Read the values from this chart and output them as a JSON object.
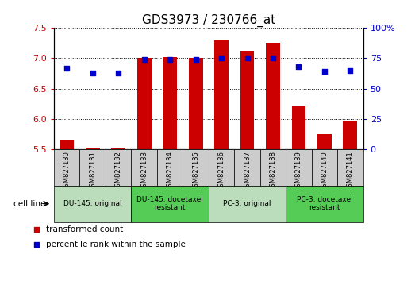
{
  "title": "GDS3973 / 230766_at",
  "samples": [
    "GSM827130",
    "GSM827131",
    "GSM827132",
    "GSM827133",
    "GSM827134",
    "GSM827135",
    "GSM827136",
    "GSM827137",
    "GSM827138",
    "GSM827139",
    "GSM827140",
    "GSM827141"
  ],
  "bar_values": [
    5.65,
    5.52,
    5.51,
    7.0,
    7.02,
    7.01,
    7.3,
    7.12,
    7.25,
    6.22,
    5.75,
    5.97
  ],
  "percentile_values": [
    67,
    63,
    63,
    74,
    74,
    74,
    75,
    75,
    75,
    68,
    64,
    65
  ],
  "bar_bottom": 5.5,
  "ylim_left": [
    5.5,
    7.5
  ],
  "ylim_right": [
    0,
    100
  ],
  "yticks_left": [
    5.5,
    6.0,
    6.5,
    7.0,
    7.5
  ],
  "yticks_right": [
    0,
    25,
    50,
    75,
    100
  ],
  "bar_color": "#cc0000",
  "dot_color": "#0000cc",
  "cell_line_groups": [
    {
      "label": "DU-145: original",
      "start": 0,
      "end": 3,
      "color": "#bbddbb"
    },
    {
      "label": "DU-145: docetaxel\nresistant",
      "start": 3,
      "end": 6,
      "color": "#55cc55"
    },
    {
      "label": "PC-3: original",
      "start": 6,
      "end": 9,
      "color": "#bbddbb"
    },
    {
      "label": "PC-3: docetaxel\nresistant",
      "start": 9,
      "end": 12,
      "color": "#55cc55"
    }
  ],
  "legend_items": [
    {
      "label": "transformed count",
      "color": "#cc0000"
    },
    {
      "label": "percentile rank within the sample",
      "color": "#0000cc"
    }
  ],
  "cell_line_label": "cell line",
  "tick_label_color_left": "#cc0000",
  "tick_label_color_right": "#0000cc",
  "title_fontsize": 11,
  "axis_fontsize": 8,
  "bar_width": 0.55,
  "sample_box_color": "#cccccc",
  "sample_box_color_alt": "#dddddd"
}
